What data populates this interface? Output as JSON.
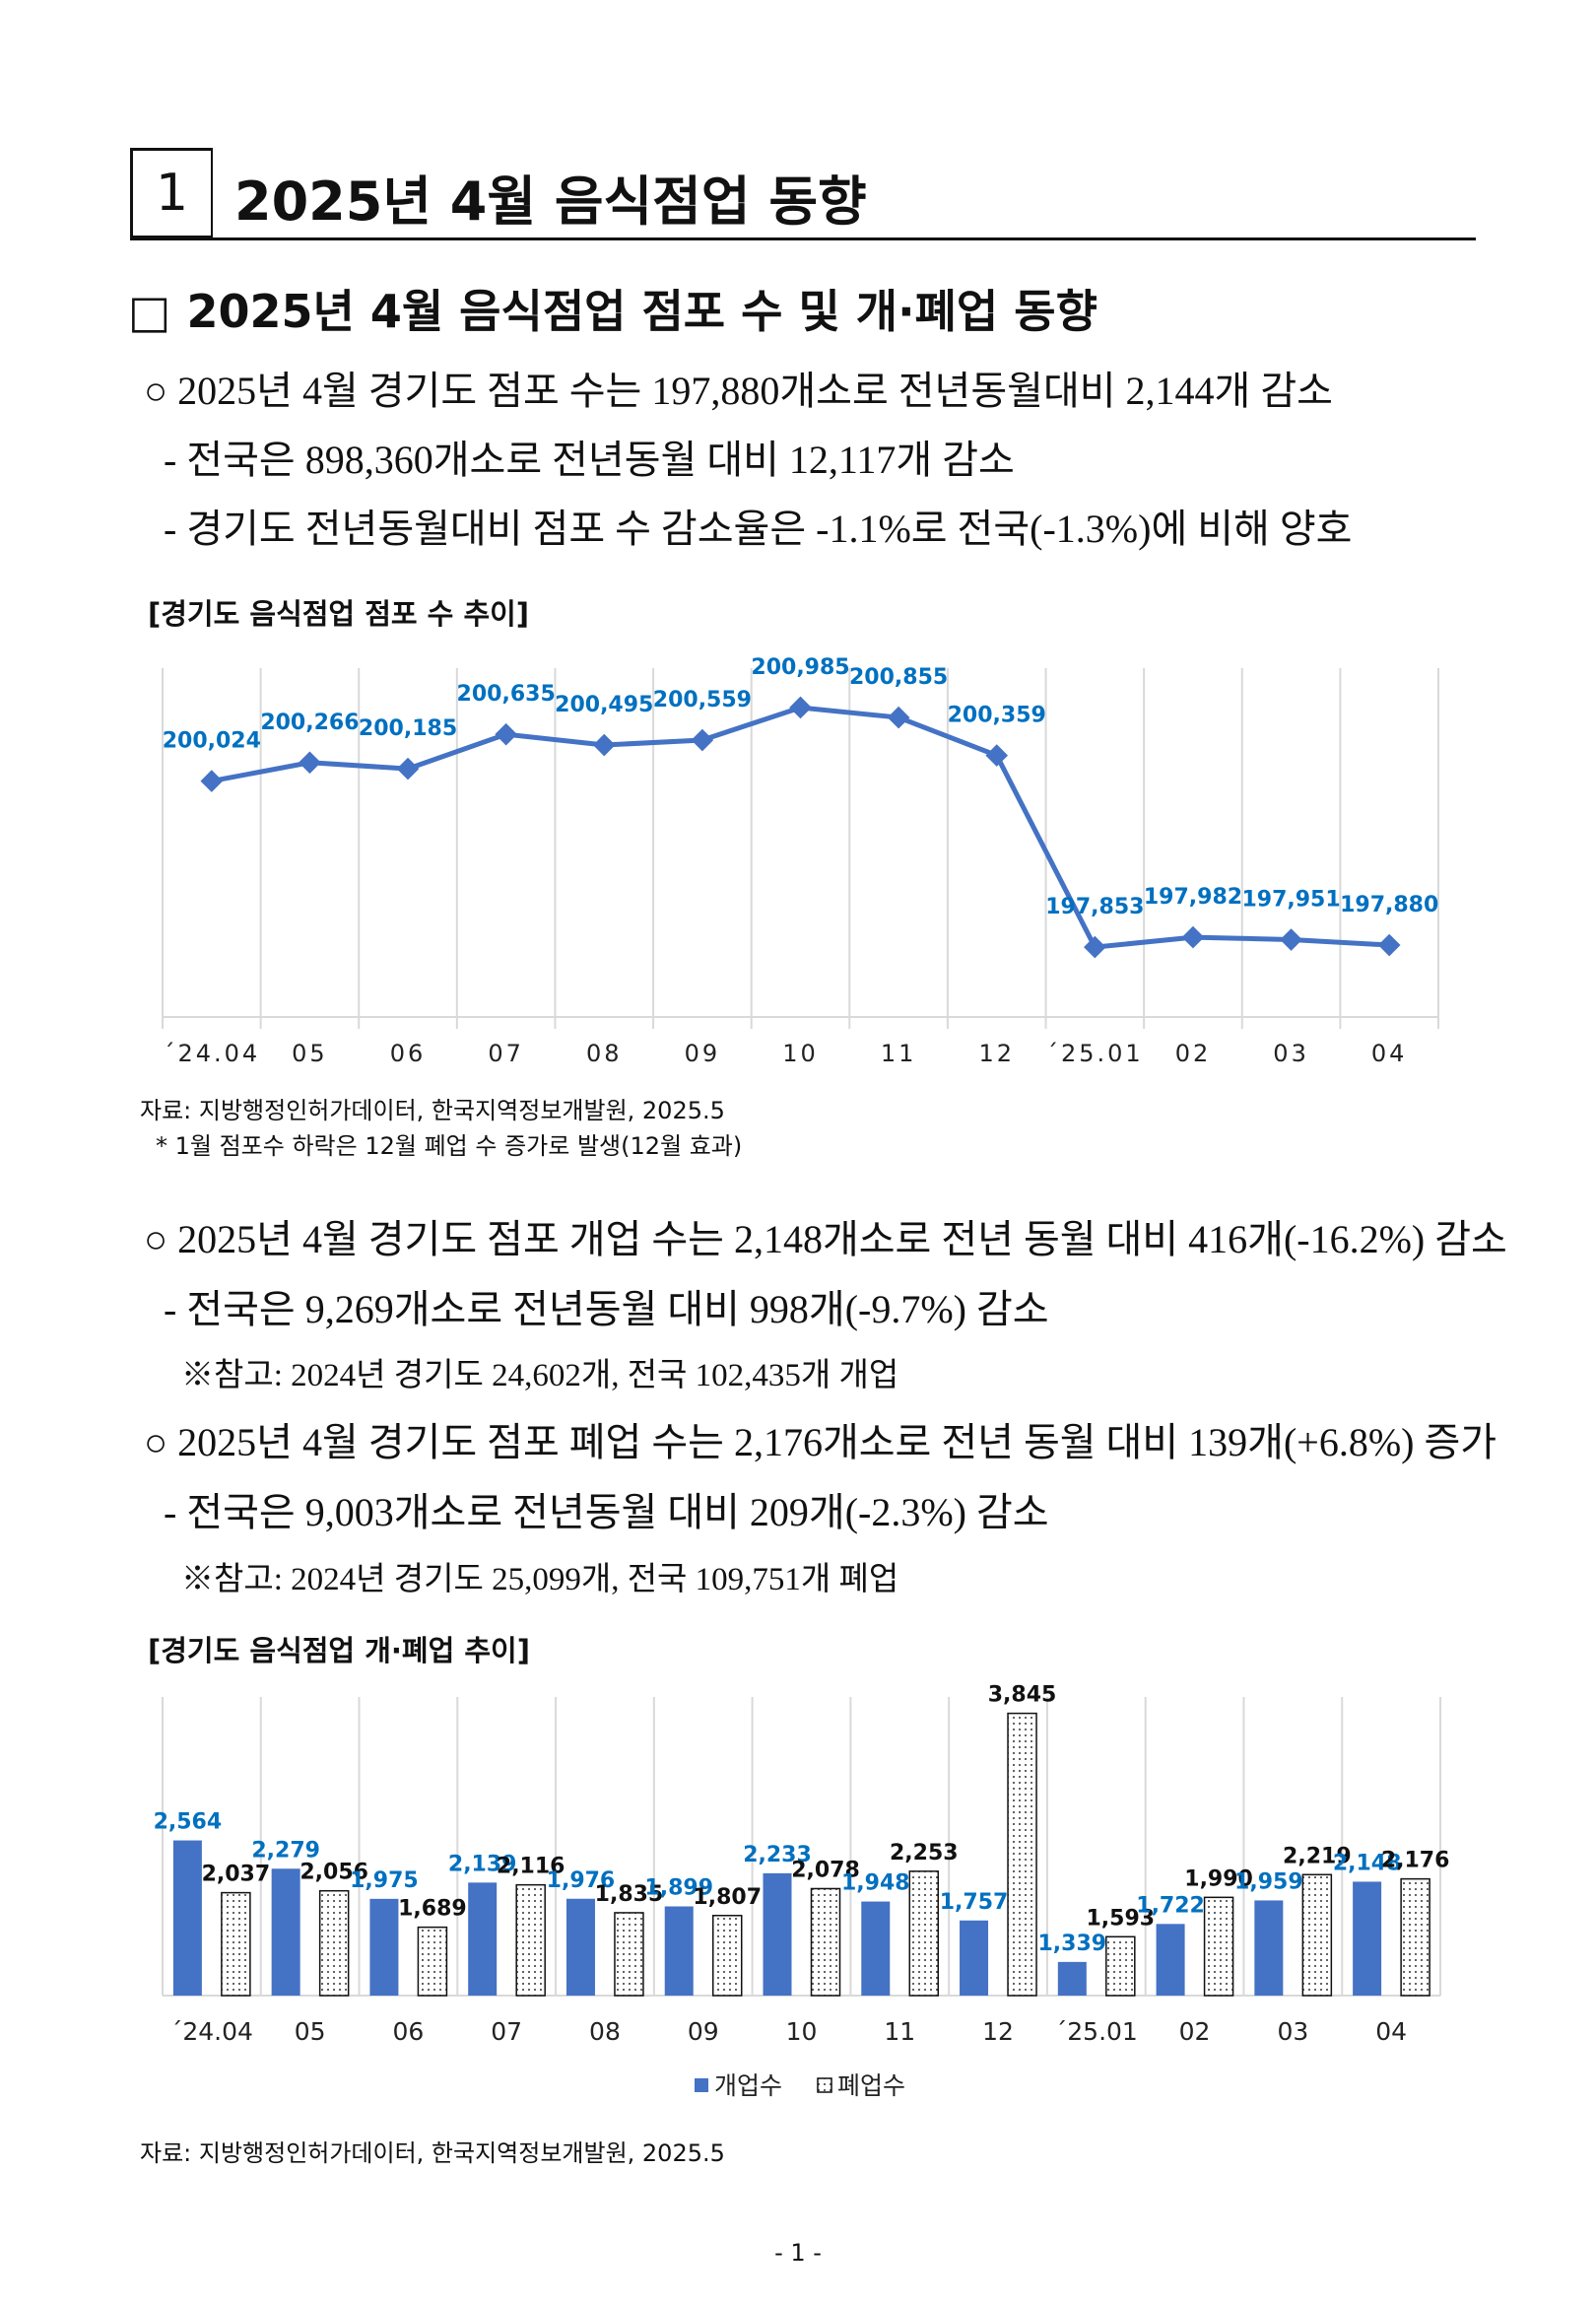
{
  "header": {
    "section_number": "1",
    "title": "2025년 4월 음식점업 동향"
  },
  "subtitle": "□ 2025년 4월 음식점업 점포 수 및 개·폐업 동향",
  "block1": [
    "○ 2025년 4월 경기도 점포 수는 197,880개소로 전년동월대비 2,144개 감소",
    "- 전국은 898,360개소로 전년동월 대비 12,117개 감소",
    "- 경기도 전년동월대비 점포 수 감소율은 -1.1%로 전국(-1.3%)에 비해 양호"
  ],
  "chart1_title": "[경기도 음식점업 점포 수 추이]",
  "chart1_source": "자료: 지방행정인허가데이터, 한국지역정보개발원, 2025.5",
  "chart1_note": "* 1월 점포수 하락은 12월 폐업 수 증가로 발생(12월 효과)",
  "block2": [
    "○ 2025년 4월 경기도 점포 개업 수는 2,148개소로 전년 동월 대비 416개(-16.2%) 감소",
    "- 전국은  9,269개소로 전년동월 대비 998개(-9.7%) 감소",
    "※참고: 2024년 경기도 24,602개, 전국 102,435개 개업",
    "○ 2025년 4월 경기도 점포 폐업 수는 2,176개소로 전년 동월 대비 139개(+6.8%) 증가",
    "- 전국은  9,003개소로 전년동월 대비 209개(-2.3%) 감소",
    "※참고: 2024년 경기도 25,099개, 전국 109,751개 폐업"
  ],
  "chart2_title": "[경기도 음식점업 개·폐업 추이]",
  "chart2_source": "자료: 지방행정인허가데이터, 한국지역정보개발원, 2025.5",
  "page_number": "- 1 -",
  "chart_data": [
    {
      "type": "line",
      "title": "[경기도 음식점업 점포 수 추이]",
      "categories": [
        "´24.04",
        "05",
        "06",
        "07",
        "08",
        "09",
        "10",
        "11",
        "12",
        "´25.01",
        "02",
        "03",
        "04"
      ],
      "values": [
        200024,
        200266,
        200185,
        200635,
        200495,
        200559,
        200985,
        200855,
        200359,
        197853,
        197982,
        197951,
        197880
      ],
      "labels": [
        "200,024",
        "200,266",
        "200,185",
        "200,635",
        "200,495",
        "200,559",
        "200,985",
        "200,855",
        "200,359",
        "197,853",
        "197,982",
        "197,951",
        "197,880"
      ],
      "ylim": [
        196940,
        201500
      ],
      "color": "#4472C4",
      "label_color": "#0070C0",
      "grid": "vertical"
    },
    {
      "type": "bar",
      "title": "[경기도 음식점업 개·폐업 추이]",
      "categories": [
        "´24.04",
        "05",
        "06",
        "07",
        "08",
        "09",
        "10",
        "11",
        "12",
        "´25.01",
        "02",
        "03",
        "04"
      ],
      "series": [
        {
          "name": "개업수",
          "values": [
            2564,
            2279,
            1975,
            2139,
            1976,
            1899,
            2233,
            1948,
            1757,
            1339,
            1722,
            1959,
            2148
          ],
          "labels": [
            "2,564",
            "2,279",
            "1,975",
            "2,139",
            "1,976",
            "1,899",
            "2,233",
            "1,948",
            "1,757",
            "1,339",
            "1,722",
            "1,959",
            "2,148"
          ],
          "color": "#4472C4",
          "label_color": "#0070C0"
        },
        {
          "name": "폐업수",
          "values": [
            2037,
            2056,
            1689,
            2116,
            1835,
            1807,
            2078,
            2253,
            3845,
            1593,
            1990,
            2219,
            2176
          ],
          "labels": [
            "2,037",
            "2,056",
            "1,689",
            "2,116",
            "1,835",
            "1,807",
            "2,078",
            "2,253",
            "3,845",
            "1,593",
            "1,990",
            "2,219",
            "2,176"
          ],
          "color": "#ffffff",
          "label_color": "#111111"
        }
      ],
      "ylim": [
        1000,
        4010
      ],
      "legend": "bottom"
    }
  ]
}
